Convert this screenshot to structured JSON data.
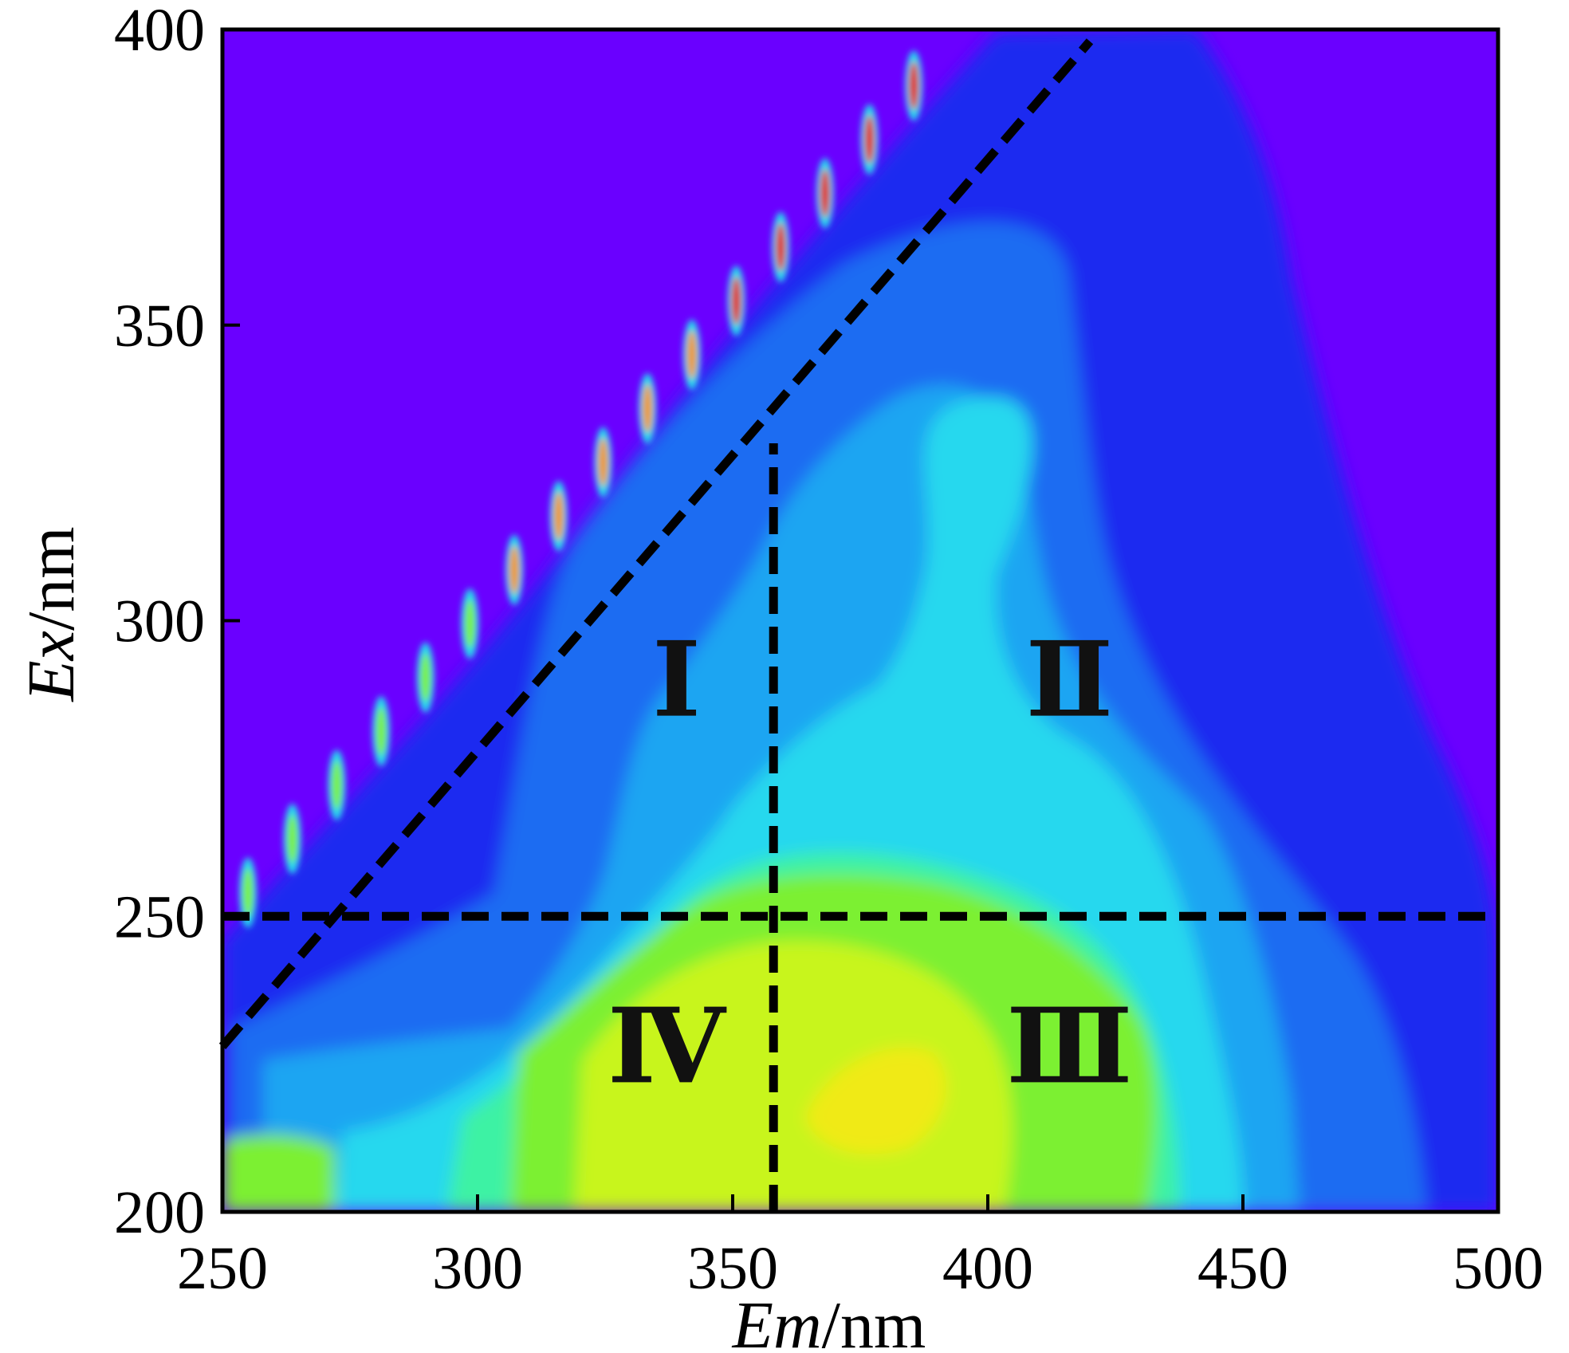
{
  "chart_data": {
    "type": "heatmap",
    "title": "",
    "xlabel_italic": "Em",
    "xlabel_unit": "/nm",
    "ylabel_italic": "Ex",
    "ylabel_unit": "/nm",
    "xlim": [
      250,
      500
    ],
    "ylim": [
      200,
      400
    ],
    "xticks": [
      250,
      300,
      350,
      400,
      450,
      500
    ],
    "yticks": [
      200,
      250,
      300,
      350,
      400
    ],
    "xtick_labels": [
      "250",
      "300",
      "350",
      "400",
      "450",
      "500"
    ],
    "ytick_labels": [
      "200",
      "250",
      "300",
      "350",
      "400"
    ],
    "grid": false,
    "colormap": [
      "#6a00ff",
      "#1e2cf0",
      "#1a6cf2",
      "#1fa5f2",
      "#28d8ee",
      "#3cf2a4",
      "#7cf032",
      "#c8f51e",
      "#f0ea14",
      "#f09616",
      "#e02810"
    ],
    "boundary_lines": [
      {
        "name": "vertical-divider",
        "x": [
          358,
          358
        ],
        "y": [
          200,
          330
        ]
      },
      {
        "name": "horizontal-divider",
        "x": [
          250,
          500
        ],
        "y": [
          250,
          250
        ]
      },
      {
        "name": "diagonal-divider",
        "x": [
          250,
          420
        ],
        "y": [
          228,
          398
        ]
      }
    ],
    "region_labels": [
      {
        "text": "Ⅰ",
        "x": 339,
        "y": 290
      },
      {
        "text": "Ⅱ",
        "x": 416,
        "y": 290
      },
      {
        "text": "Ⅲ",
        "x": 416,
        "y": 228
      },
      {
        "text": "Ⅳ",
        "x": 337,
        "y": 228
      }
    ]
  }
}
